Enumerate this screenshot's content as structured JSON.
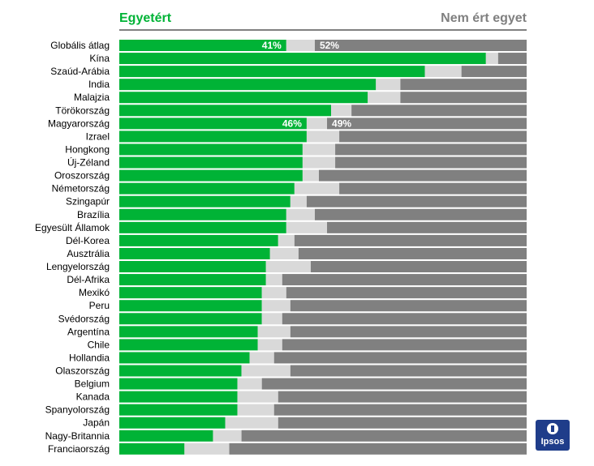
{
  "header": {
    "left": "Egyetért",
    "right": "Nem ért egyet"
  },
  "colors": {
    "agree": "#00b336",
    "neutral": "#d9d9d9",
    "disagree": "#808080",
    "accent": "#1f3d8a"
  },
  "logo": {
    "text": "Ipsos"
  },
  "chart_data": {
    "type": "bar",
    "orientation": "horizontal",
    "stacked": true,
    "title": "",
    "xlim": [
      0,
      100
    ],
    "categories": [
      "Globális átlag",
      "Kína",
      "Szaúd-Arábia",
      "India",
      "Malajzia",
      "Törökország",
      "Magyarország",
      "Izrael",
      "Hongkong",
      "Új-Zéland",
      "Oroszország",
      "Németország",
      "Szingapúr",
      "Brazília",
      "Egyesült Államok",
      "Dél-Korea",
      "Ausztrália",
      "Lengyelország",
      "Dél-Afrika",
      "Mexikó",
      "Peru",
      "Svédország",
      "Argentína",
      "Chile",
      "Hollandia",
      "Olaszország",
      "Belgium",
      "Kanada",
      "Spanyolország",
      "Japán",
      "Nagy-Britannia",
      "Franciaország"
    ],
    "series": [
      {
        "name": "Egyetért",
        "values": [
          41,
          90,
          75,
          63,
          61,
          52,
          46,
          46,
          45,
          45,
          45,
          43,
          42,
          41,
          41,
          39,
          37,
          36,
          36,
          35,
          35,
          35,
          34,
          34,
          32,
          30,
          29,
          29,
          29,
          26,
          23,
          16
        ]
      },
      {
        "name": "",
        "values": [
          7,
          3,
          9,
          6,
          8,
          5,
          5,
          8,
          8,
          8,
          4,
          11,
          4,
          7,
          10,
          4,
          7,
          11,
          4,
          6,
          7,
          5,
          8,
          6,
          6,
          12,
          6,
          10,
          9,
          13,
          7,
          11
        ]
      },
      {
        "name": "Nem ért egyet",
        "values": [
          52,
          7,
          16,
          31,
          31,
          43,
          49,
          46,
          47,
          47,
          51,
          46,
          54,
          52,
          49,
          57,
          56,
          53,
          60,
          59,
          58,
          60,
          58,
          60,
          62,
          58,
          65,
          61,
          62,
          61,
          70,
          73
        ]
      }
    ],
    "data_labels": [
      {
        "category": "Globális átlag",
        "agree": "41%",
        "disagree": "52%"
      },
      {
        "category": "Magyarország",
        "agree": "46%",
        "disagree": "49%"
      }
    ]
  }
}
